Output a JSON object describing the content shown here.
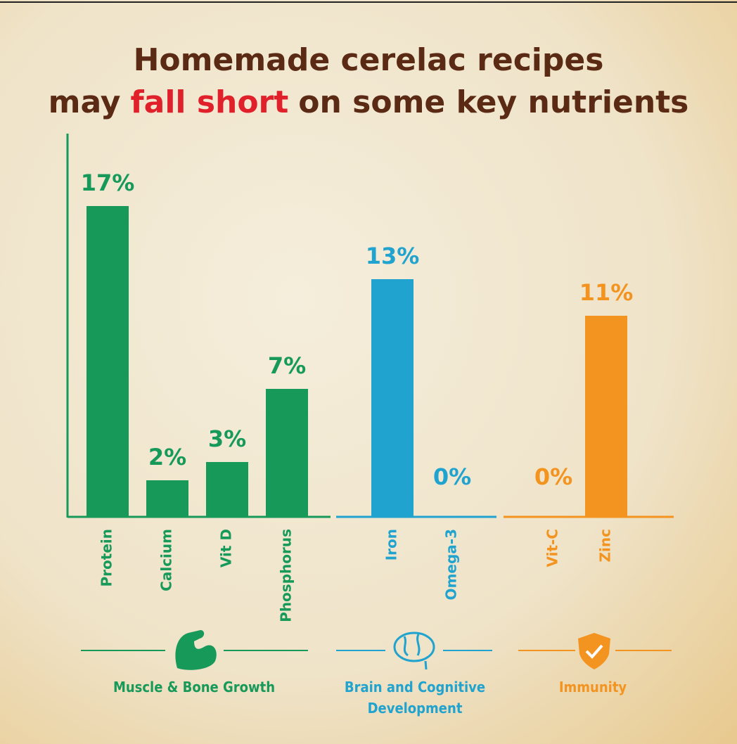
{
  "chart_data": {
    "type": "bar",
    "title": {
      "line1": "Homemade cerelac recipes",
      "line2_start": "may",
      "line2_highlight": "fall short",
      "line2_end": "on some key nutrients"
    },
    "groups": [
      {
        "name": "Muscle & Bone Growth",
        "color": "#17995a",
        "categories": [
          "Protein",
          "Calcium",
          "Vit D",
          "Phosphorus"
        ],
        "values": [
          17,
          2,
          3,
          7
        ],
        "value_labels": [
          "17%",
          "2%",
          "3%",
          "7%"
        ]
      },
      {
        "name": "Brain and Cognitive Development",
        "color": "#21a3cf",
        "categories": [
          "Iron",
          "Omega-3"
        ],
        "values": [
          13,
          0
        ],
        "value_labels": [
          "13%",
          "0%"
        ]
      },
      {
        "name": "Immunity",
        "color": "#f39420",
        "categories": [
          "Vit-C",
          "Zinc"
        ],
        "values": [
          0,
          11
        ],
        "value_labels": [
          "0%",
          "11%"
        ]
      }
    ]
  }
}
